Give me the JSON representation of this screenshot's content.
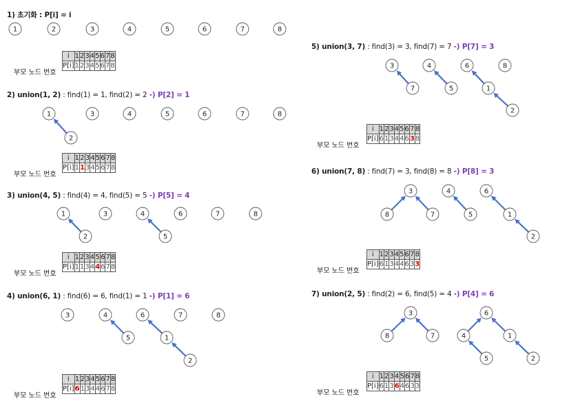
{
  "table_label": "부모 노드 번호",
  "header_row": [
    "i",
    "1",
    "2",
    "3",
    "4",
    "5",
    "6",
    "7",
    "8"
  ],
  "p_label": "P[i]",
  "steps": [
    {
      "title": "1) 초기화 : P[i] = i",
      "detail": "",
      "result": "",
      "nodes": [
        "1",
        "2",
        "3",
        "4",
        "5",
        "6",
        "7",
        "8"
      ],
      "edges": [],
      "p": [
        "1",
        "2",
        "3",
        "4",
        "5",
        "6",
        "7",
        "8"
      ],
      "changed": null
    },
    {
      "title": "2) union(1, 2)",
      "detail": " : find(1) = 1, find(2) = 2 ",
      "result": "-) P[2] = 1",
      "nodes": [
        "1",
        "2",
        "3",
        "4",
        "5",
        "6",
        "7",
        "8"
      ],
      "edges": [
        [
          "2",
          "1"
        ]
      ],
      "p": [
        "1",
        "1",
        "3",
        "4",
        "5",
        "6",
        "7",
        "8"
      ],
      "changed": 2
    },
    {
      "title": "3) union(4, 5)",
      "detail": " : find(4) = 4, find(5) = 5 ",
      "result": "-) P[5] = 4",
      "nodes": [
        "1",
        "2",
        "3",
        "4",
        "5",
        "6",
        "7",
        "8"
      ],
      "edges": [
        [
          "2",
          "1"
        ],
        [
          "5",
          "4"
        ]
      ],
      "p": [
        "1",
        "1",
        "3",
        "4",
        "4",
        "6",
        "7",
        "8"
      ],
      "changed": 5
    },
    {
      "title": "4) union(6, 1)",
      "detail": " : find(6) = 6, find(1) = 1 ",
      "result": "-) P[1] = 6",
      "nodes": [
        "3",
        "4",
        "5",
        "6",
        "1",
        "2",
        "7",
        "8"
      ],
      "edges": [
        [
          "5",
          "4"
        ],
        [
          "1",
          "6"
        ],
        [
          "2",
          "1"
        ]
      ],
      "p": [
        "6",
        "1",
        "3",
        "4",
        "4",
        "6",
        "7",
        "8"
      ],
      "changed": 1
    },
    {
      "title": "5) union(3, 7)",
      "detail": " : find(3) = 3, find(7) = 7 ",
      "result": "-) P[7] = 3",
      "nodes": [
        "3",
        "7",
        "4",
        "5",
        "6",
        "1",
        "2",
        "8"
      ],
      "edges": [
        [
          "7",
          "3"
        ],
        [
          "5",
          "4"
        ],
        [
          "1",
          "6"
        ],
        [
          "2",
          "1"
        ]
      ],
      "p": [
        "6",
        "1",
        "3",
        "4",
        "4",
        "6",
        "3",
        "8"
      ],
      "changed": 7
    },
    {
      "title": "6) union(7, 8)",
      "detail": " : find(7) = 3, find(8) = 8 ",
      "result": "-) P[8] = 3",
      "nodes": [
        "3",
        "8",
        "7",
        "4",
        "5",
        "6",
        "1",
        "2"
      ],
      "edges": [
        [
          "8",
          "3"
        ],
        [
          "7",
          "3"
        ],
        [
          "5",
          "4"
        ],
        [
          "1",
          "6"
        ],
        [
          "2",
          "1"
        ]
      ],
      "p": [
        "6",
        "1",
        "3",
        "4",
        "4",
        "6",
        "3",
        "3"
      ],
      "changed": 8
    },
    {
      "title": "7) union(2, 5)",
      "detail": " : find(2) = 6, find(5) = 4 ",
      "result": "-) P[4] = 6",
      "nodes": [
        "3",
        "8",
        "7",
        "6",
        "4",
        "5",
        "1",
        "2"
      ],
      "edges": [
        [
          "8",
          "3"
        ],
        [
          "7",
          "3"
        ],
        [
          "4",
          "6"
        ],
        [
          "5",
          "4"
        ],
        [
          "1",
          "6"
        ],
        [
          "2",
          "1"
        ]
      ],
      "p": [
        "6",
        "1",
        "3",
        "6",
        "4",
        "6",
        "3",
        "3"
      ],
      "changed": 4
    }
  ]
}
